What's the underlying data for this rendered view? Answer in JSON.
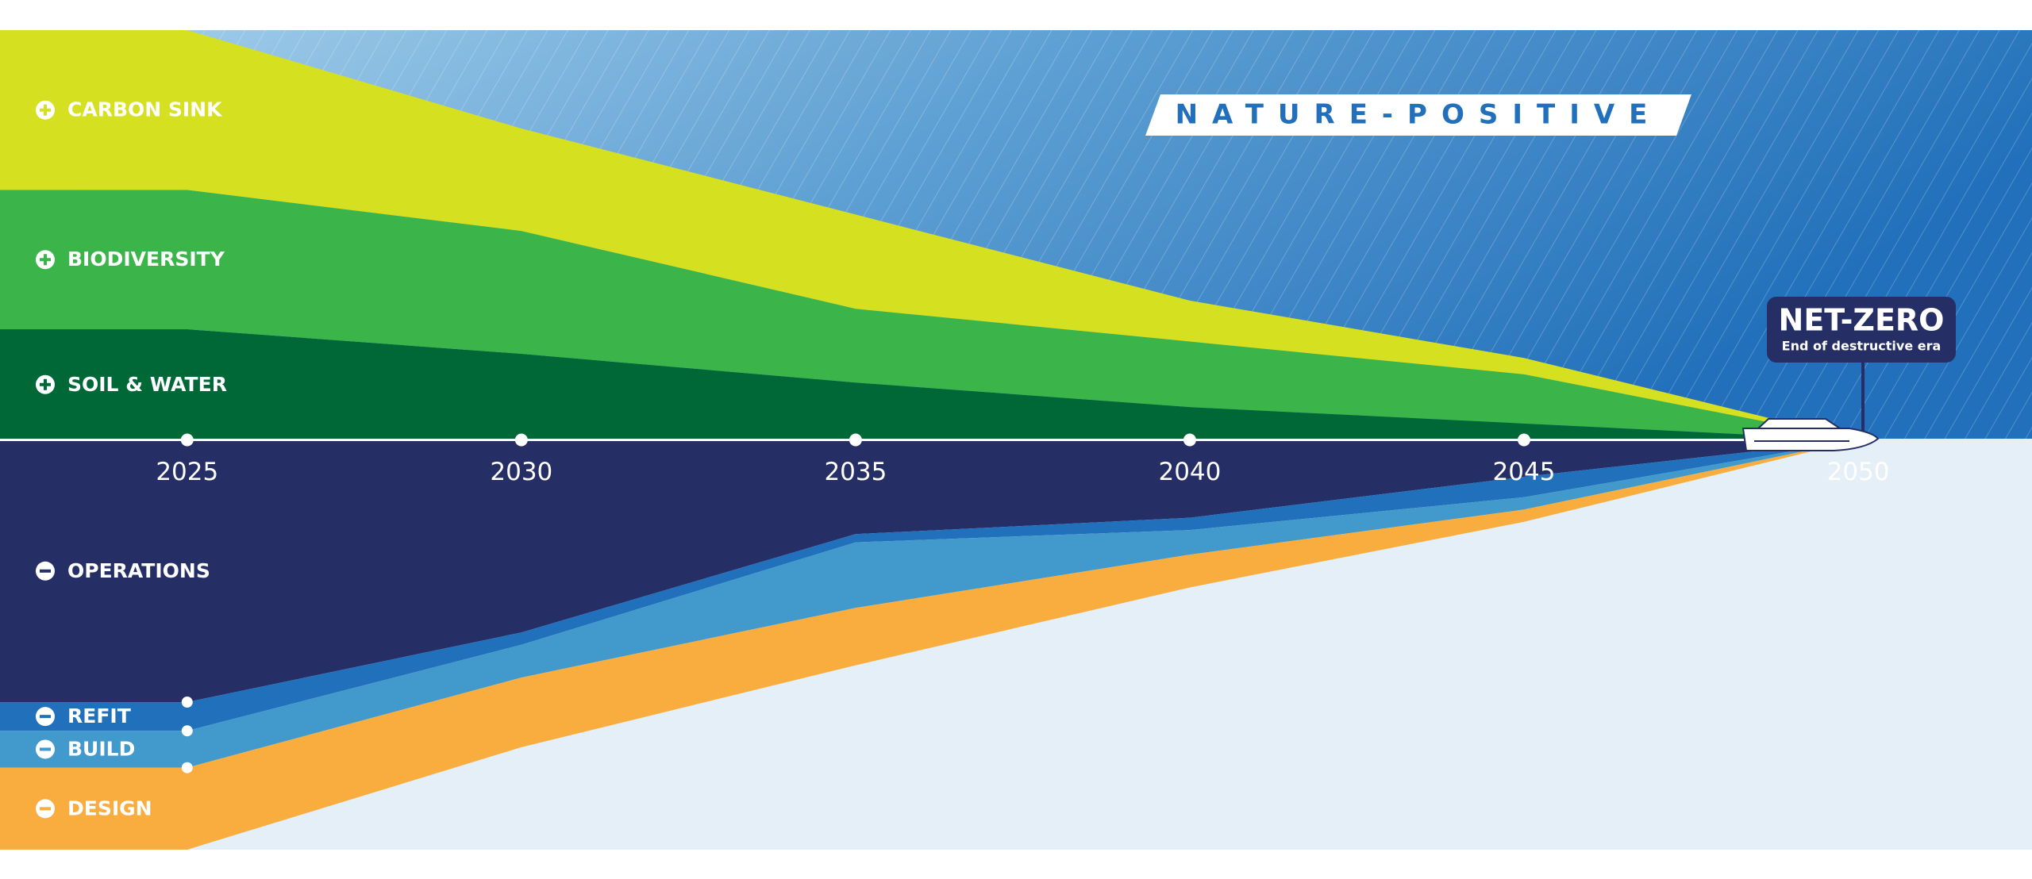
{
  "chart_data": {
    "type": "area",
    "stacked": true,
    "annotations": {
      "banner": "NATURE-POSITIVE",
      "milestone": "NET-ZERO",
      "milestone_note": "End of destructive era"
    },
    "x": [
      2025,
      2030,
      2035,
      2040,
      2045,
      2050
    ],
    "xlim": [
      2022.2,
      2052.6
    ],
    "ylim": [
      -100,
      100
    ],
    "series": [
      {
        "name": "SOIL & WATER",
        "color": "#006837",
        "values": [
          27,
          21,
          14,
          8,
          4,
          0
        ]
      },
      {
        "name": "BIODIVERSITY",
        "color": "#3bb54a",
        "values": [
          34,
          30,
          18,
          16,
          12,
          0
        ]
      },
      {
        "name": "CARBON SINK",
        "color": "#d5e021",
        "values": [
          39,
          25,
          23,
          10,
          4,
          0
        ]
      },
      {
        "name": "OPERATIONS",
        "color": "#252f66",
        "values": [
          -64,
          -47,
          -23,
          -19,
          -9,
          0
        ]
      },
      {
        "name": "REFIT",
        "color": "#2170bb",
        "values": [
          -7,
          -3,
          -2,
          -3,
          -5,
          0
        ]
      },
      {
        "name": "BUILD",
        "color": "#4299cc",
        "values": [
          -9,
          -8,
          -16,
          -6,
          -3,
          0
        ]
      },
      {
        "name": "DESIGN",
        "color": "#f9ad3f",
        "values": [
          -20,
          -17,
          -14,
          -8,
          -3,
          0
        ]
      }
    ]
  }
}
